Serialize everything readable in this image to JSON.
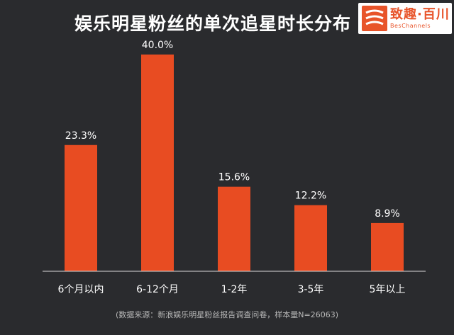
{
  "title": "娱乐明星粉丝的单次追星时长分布",
  "logo": {
    "main_text": "致趣·百川",
    "sub_text": "BesChannels"
  },
  "footnote": "(数据来源：新浪娱乐明星粉丝报告调查问卷，样本量N=26063)",
  "colors": {
    "background": "#2a2b2e",
    "bar": "#e84c22",
    "text": "#ffffff",
    "axis": "#d9d9d9"
  },
  "chart_data": {
    "type": "bar",
    "categories": [
      "6个月以内",
      "6-12个月",
      "1-2年",
      "3-5年",
      "5年以上"
    ],
    "values": [
      23.3,
      40.0,
      15.6,
      12.2,
      8.9
    ],
    "data_labels": [
      "23.3%",
      "40.0%",
      "15.6%",
      "12.2%",
      "8.9%"
    ],
    "unit": "%",
    "ylim": [
      0,
      40
    ],
    "grid": false,
    "legend": "none"
  }
}
